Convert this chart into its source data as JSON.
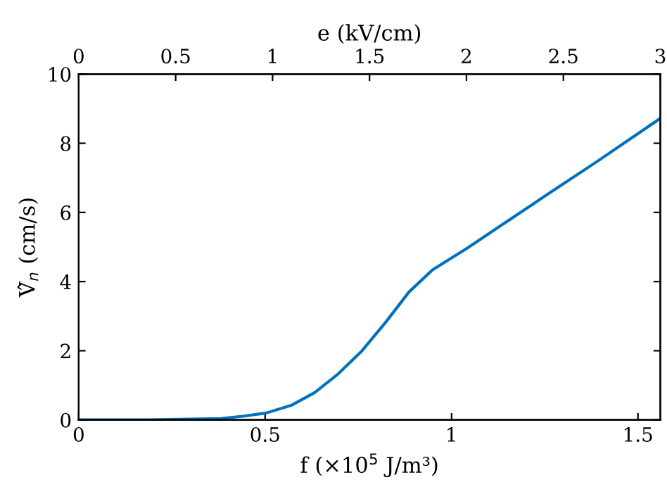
{
  "chart_data": {
    "type": "line",
    "xlabel": "f (×10$^{5}$ J/m³)",
    "x2label": "e (kV/cm)",
    "ylabel": "V̂$_{n}$ (cm/s)",
    "x": [
      0,
      0.19,
      0.381,
      0.444,
      0.503,
      0.57,
      0.633,
      0.696,
      0.76,
      0.823,
      0.886,
      0.949,
      1.041,
      1.138,
      1.264,
      1.39,
      1.56
    ],
    "series": [
      {
        "color": "#0072bd",
        "values": [
          0,
          0,
          0.04,
          0.11,
          0.2,
          0.42,
          0.79,
          1.33,
          2.0,
          2.82,
          3.7,
          4.34,
          4.96,
          5.66,
          6.57,
          7.47,
          8.72
        ]
      }
    ],
    "xlim": [
      0,
      1.56
    ],
    "xticks": [
      0,
      0.5,
      1,
      1.5
    ],
    "x2lim": [
      0,
      3
    ],
    "x2ticks": [
      0,
      0.5,
      1,
      1.5,
      2,
      2.5,
      3
    ],
    "ylim": [
      0,
      10
    ],
    "yticks": [
      0,
      2,
      4,
      6,
      8,
      10
    ],
    "grid": false,
    "legend": false,
    "marker": "none",
    "line_style": "solid"
  }
}
